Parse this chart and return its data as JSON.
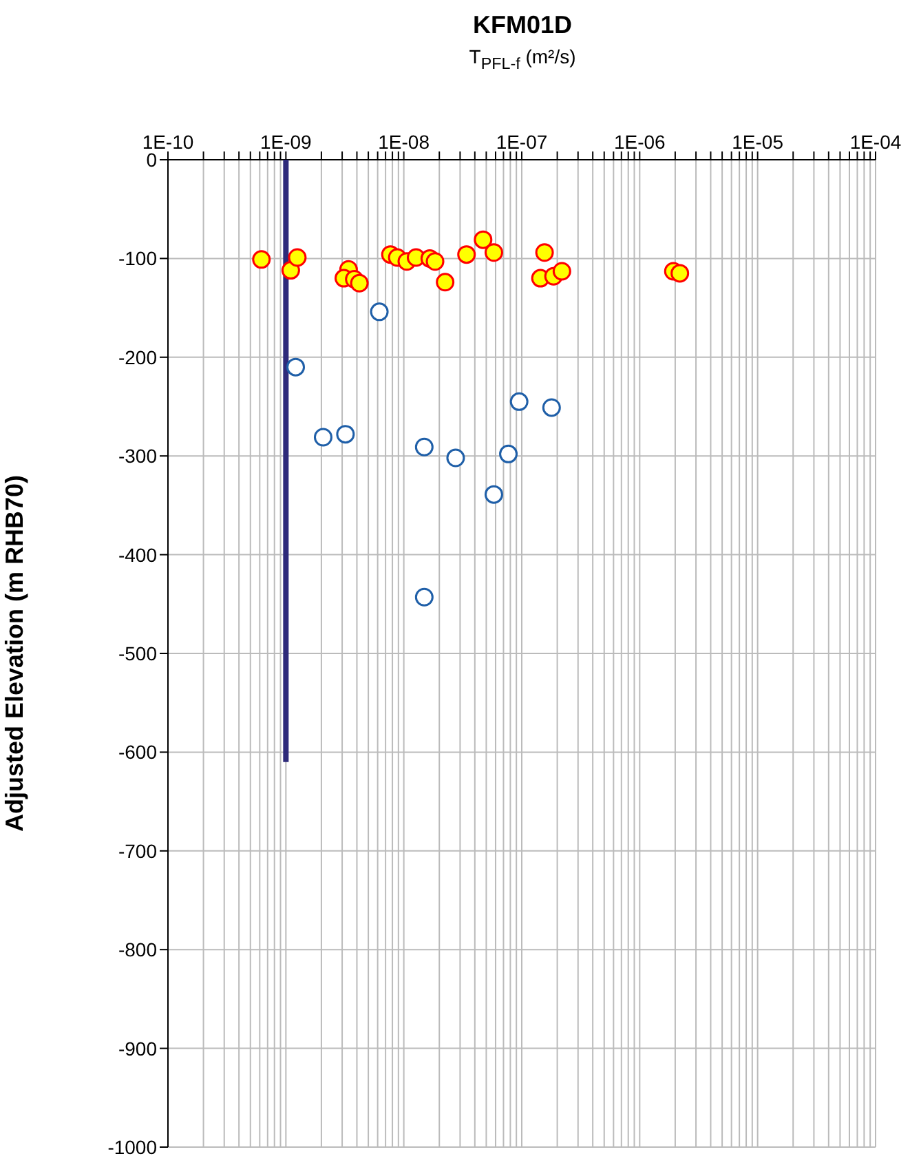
{
  "chart_data": {
    "type": "scatter",
    "title": "KFM01D",
    "xlabel": "T$_{PFL-f}$ (m²/s)",
    "ylabel": "Adjusted Elevation (m RHB70)",
    "log": "x",
    "grid": true,
    "marker": "circle",
    "xlim": [
      1e-10,
      0.0001
    ],
    "xticks": [
      {
        "value": 1e-10,
        "label": "1E-10"
      },
      {
        "value": 2e-10,
        "label": null
      },
      {
        "value": 3e-10,
        "label": null
      },
      {
        "value": 4e-10,
        "label": null
      },
      {
        "value": 5e-10,
        "label": null
      },
      {
        "value": 6e-10,
        "label": null
      },
      {
        "value": 7e-10,
        "label": null
      },
      {
        "value": 8e-10,
        "label": null
      },
      {
        "value": 9e-10,
        "label": null
      },
      {
        "value": 1e-09,
        "label": "1E-09"
      },
      {
        "value": 2e-09,
        "label": null
      },
      {
        "value": 3e-09,
        "label": null
      },
      {
        "value": 4e-09,
        "label": null
      },
      {
        "value": 5e-09,
        "label": null
      },
      {
        "value": 6e-09,
        "label": null
      },
      {
        "value": 7e-09,
        "label": null
      },
      {
        "value": 8e-09,
        "label": null
      },
      {
        "value": 9e-09,
        "label": null
      },
      {
        "value": 1e-08,
        "label": "1E-08"
      },
      {
        "value": 2e-08,
        "label": null
      },
      {
        "value": 3e-08,
        "label": null
      },
      {
        "value": 4e-08,
        "label": null
      },
      {
        "value": 5e-08,
        "label": null
      },
      {
        "value": 6e-08,
        "label": null
      },
      {
        "value": 7e-08,
        "label": null
      },
      {
        "value": 8e-08,
        "label": null
      },
      {
        "value": 9e-08,
        "label": null
      },
      {
        "value": 1e-07,
        "label": "1E-07"
      },
      {
        "value": 2e-07,
        "label": null
      },
      {
        "value": 3e-07,
        "label": null
      },
      {
        "value": 4e-07,
        "label": null
      },
      {
        "value": 5e-07,
        "label": null
      },
      {
        "value": 6e-07,
        "label": null
      },
      {
        "value": 7e-07,
        "label": null
      },
      {
        "value": 8e-07,
        "label": null
      },
      {
        "value": 9e-07,
        "label": null
      },
      {
        "value": 1e-06,
        "label": "1E-06"
      },
      {
        "value": 2e-06,
        "label": null
      },
      {
        "value": 3e-06,
        "label": null
      },
      {
        "value": 4e-06,
        "label": null
      },
      {
        "value": 5e-06,
        "label": null
      },
      {
        "value": 6e-06,
        "label": null
      },
      {
        "value": 7e-06,
        "label": null
      },
      {
        "value": 8e-06,
        "label": null
      },
      {
        "value": 9e-06,
        "label": null
      },
      {
        "value": 1e-05,
        "label": "1E-05"
      },
      {
        "value": 2e-05,
        "label": null
      },
      {
        "value": 3e-05,
        "label": null
      },
      {
        "value": 4e-05,
        "label": null
      },
      {
        "value": 5e-05,
        "label": null
      },
      {
        "value": 6e-05,
        "label": null
      },
      {
        "value": 7e-05,
        "label": null
      },
      {
        "value": 8e-05,
        "label": null
      },
      {
        "value": 9e-05,
        "label": null
      },
      {
        "value": 0.0001,
        "label": "1E-04"
      }
    ],
    "ylim": [
      -1000,
      0
    ],
    "yticks": [
      -1000,
      -900,
      -800,
      -700,
      -600,
      -500,
      -400,
      -300,
      -200,
      -100,
      0
    ],
    "series": [
      {
        "type": "line",
        "color": "#2e2a7a",
        "marker": "none",
        "x": [
          1e-09,
          1e-09
        ],
        "values": [
          0,
          -610
        ]
      },
      {
        "color": "#ffff00",
        "x": [
          6.2e-10,
          1.1e-09,
          1.25e-09,
          3.4e-09,
          3.1e-09,
          3.8e-09,
          4.2e-09,
          7.7e-09,
          8.8e-09,
          1.06e-08,
          1.27e-08,
          1.66e-08,
          1.84e-08,
          2.24e-08,
          3.4e-08,
          4.7e-08,
          5.8e-08,
          1.56e-07,
          1.44e-07,
          1.86e-07,
          2.19e-07,
          1.93e-06,
          2.19e-06
        ],
        "values": [
          -101,
          -112,
          -99,
          -111,
          -120,
          -121,
          -125,
          -96,
          -99,
          -103,
          -99,
          -100,
          -103,
          -124,
          -96,
          -81,
          -94,
          -94,
          -120,
          -118,
          -113,
          -113,
          -115
        ]
      },
      {
        "color": "#1f5fa8",
        "x": [
          6.2e-09,
          1.21e-09,
          2.07e-09,
          3.2e-09,
          1.49e-08,
          2.75e-08,
          9.5e-08,
          1.79e-07,
          7.7e-08,
          5.8e-08,
          1.49e-08
        ],
        "values": [
          -154,
          -210,
          -281,
          -278,
          -291,
          -302,
          -245,
          -251,
          -298,
          -339,
          -443
        ]
      }
    ]
  }
}
